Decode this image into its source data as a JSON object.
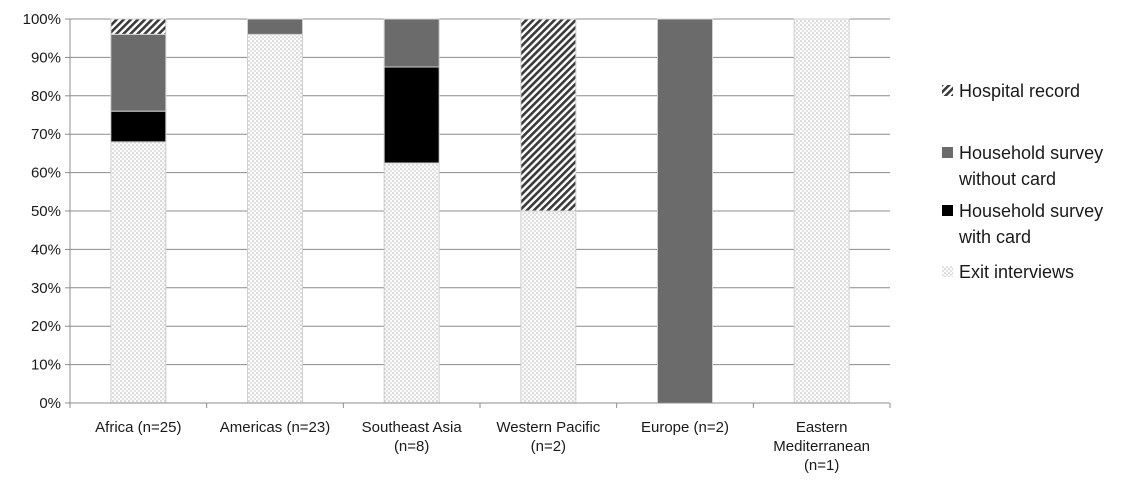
{
  "chart_data": {
    "type": "bar",
    "stacked": true,
    "percent": true,
    "title": "",
    "xlabel": "",
    "ylabel": "",
    "ylim": [
      0,
      100
    ],
    "yticks": [
      "0%",
      "10%",
      "20%",
      "30%",
      "40%",
      "50%",
      "60%",
      "70%",
      "80%",
      "90%",
      "100%"
    ],
    "grid": true,
    "legend_position": "right",
    "categories": [
      [
        "Africa (n=25)"
      ],
      [
        "Americas (n=23)"
      ],
      [
        "Southeast Asia",
        "(n=8)"
      ],
      [
        "Western Pacific",
        "(n=2)"
      ],
      [
        "Europe (n=2)"
      ],
      [
        "Eastern",
        "Mediterranean",
        "(n=1)"
      ]
    ],
    "series": [
      {
        "name": "Exit interviews",
        "values": [
          68,
          96,
          62.5,
          50,
          0,
          100
        ],
        "pattern": "dots",
        "color": "#f2f2f2"
      },
      {
        "name": "Household survey with card",
        "values": [
          8,
          0,
          25,
          0,
          0,
          0
        ],
        "pattern": "solid",
        "color": "#000000"
      },
      {
        "name": "Household survey without card",
        "values": [
          20,
          4,
          12.5,
          0,
          100,
          0
        ],
        "pattern": "solid",
        "color": "#6b6b6b"
      },
      {
        "name": "Hospital record",
        "values": [
          4,
          0,
          0,
          50,
          0,
          0
        ],
        "pattern": "hatch",
        "color": "#333333"
      }
    ],
    "legend": [
      {
        "series": "Hospital record",
        "lines": [
          "Hospital record"
        ]
      },
      {
        "series": "Household survey without card",
        "lines": [
          "Household survey",
          "without card"
        ]
      },
      {
        "series": "Household survey with card",
        "lines": [
          "Household survey",
          "with card"
        ]
      },
      {
        "series": "Exit interviews",
        "lines": [
          "Exit interviews"
        ]
      }
    ]
  }
}
